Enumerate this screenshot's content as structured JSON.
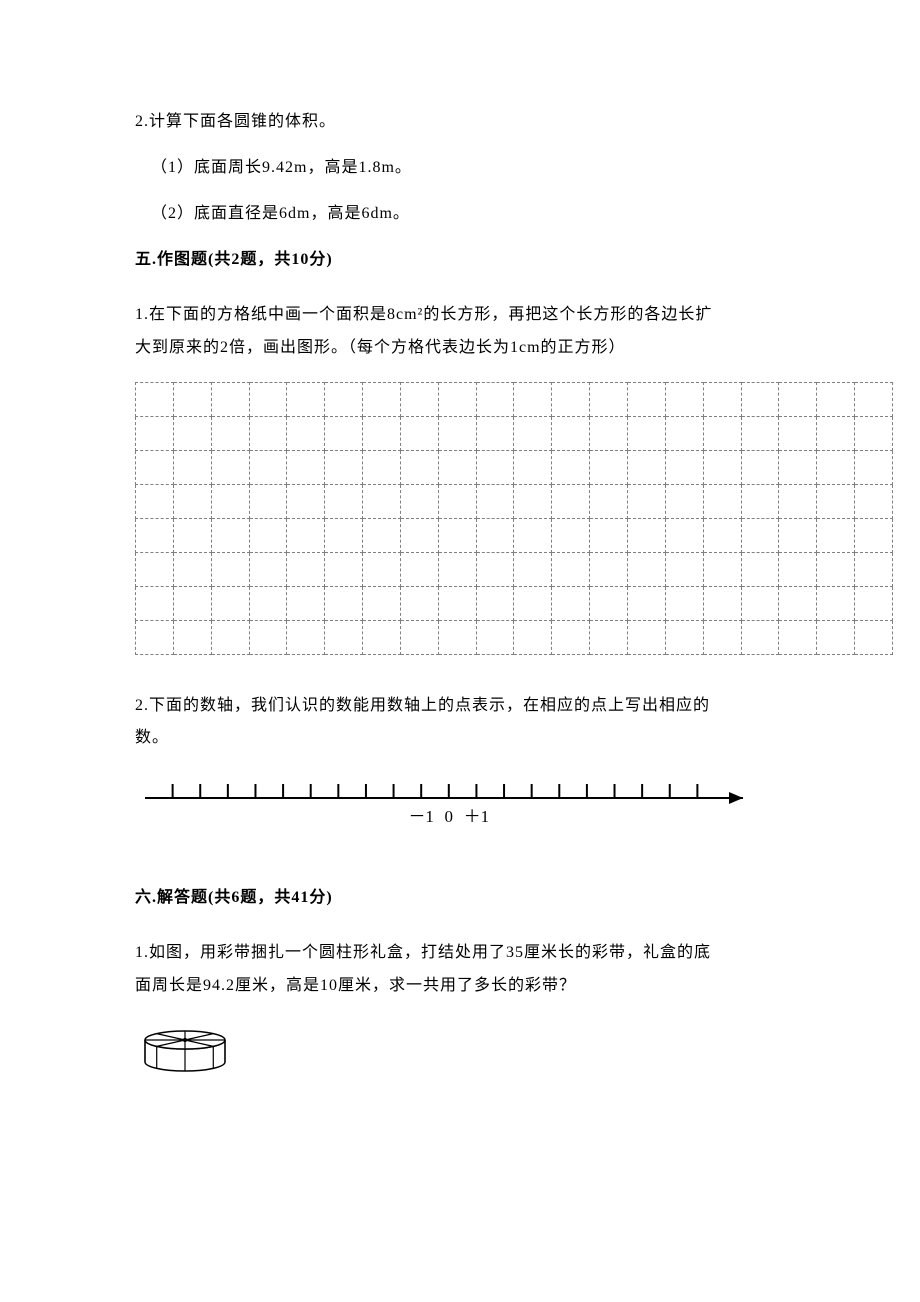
{
  "q2": {
    "stem": "2.计算下面各圆锥的体积。",
    "sub1": "（1）底面周长9.42m，高是1.8m。",
    "sub2": "（2）底面直径是6dm，高是6dm。"
  },
  "section5": {
    "head_prefix": "五.作图题(共",
    "count": "2",
    "head_mid": "题，共10分)"
  },
  "s5q1": {
    "line1": "1.在下面的方格纸中画一个面积是8cm²的长方形，再把这个长方形的各边长扩",
    "line2": "大到原来的2倍，画出图形。（每个方格代表边长为1cm的正方形）"
  },
  "grid": {
    "cols": 20,
    "rows": 8,
    "dash_color": "#808080"
  },
  "s5q2": {
    "line1": "2.下面的数轴，我们认识的数能用数轴上的点表示，在相应的点上写出相应的",
    "line2": "数。"
  },
  "numline": {
    "ticks": 20,
    "labels": {
      "minus1": "－1",
      "zero": "0",
      "plus1": "＋1"
    },
    "line_color": "#000000"
  },
  "section6": {
    "head": "六.解答题(共6题，共41分)"
  },
  "s6q1": {
    "line1": "1.如图，用彩带捆扎一个圆柱形礼盒，打结处用了35厘米长的彩带，礼盒的底",
    "line2": "面周长是94.2厘米，高是10厘米，求一共用了多长的彩带？"
  },
  "gift": {
    "stroke": "#000000",
    "fill": "#ffffff"
  }
}
